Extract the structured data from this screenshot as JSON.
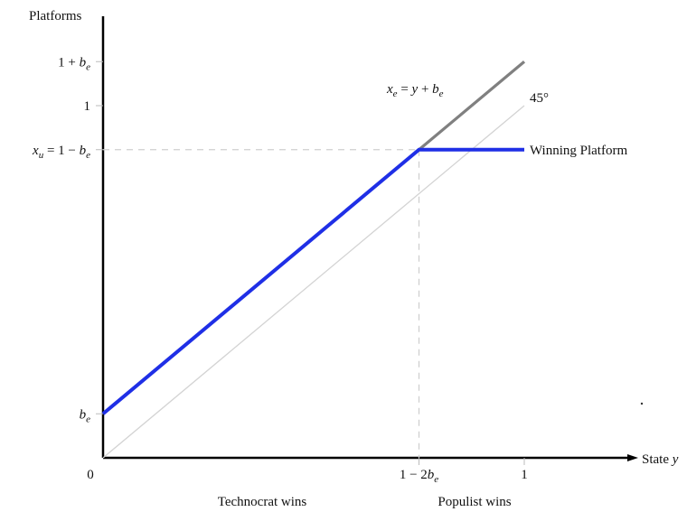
{
  "chart_data": {
    "type": "line",
    "title": "",
    "xlabel": "State y",
    "ylabel": "Platforms",
    "params": {
      "b_e": 0.125
    },
    "xlim": [
      0,
      1.1
    ],
    "ylim": [
      0,
      1.15
    ],
    "x_ticks": [
      {
        "value": 0,
        "label": "0"
      },
      {
        "value": 0.75,
        "label": "1 − 2b",
        "sub": "e"
      },
      {
        "value": 1,
        "label": "1"
      }
    ],
    "y_ticks": [
      {
        "value": 0.125,
        "label": "b",
        "sub": "e"
      },
      {
        "value": 0.875,
        "label": "x",
        "sub": "u",
        "rest": " = 1 − b",
        "sub2": "e"
      },
      {
        "value": 1,
        "label": "1"
      },
      {
        "value": 1.125,
        "label": "1 + b",
        "sub": "e"
      }
    ],
    "series": [
      {
        "name": "45°",
        "color": "#d3d3d3",
        "points": [
          [
            0,
            0
          ],
          [
            1,
            1
          ]
        ]
      },
      {
        "name": "x_e = y + b_e",
        "color": "#808080",
        "points": [
          [
            0.75,
            0.875
          ],
          [
            1,
            1.125
          ]
        ]
      },
      {
        "name": "Winning Platform",
        "color": "#1f2fe6",
        "points": [
          [
            0,
            0.125
          ],
          [
            0.75,
            0.875
          ],
          [
            1,
            0.875
          ]
        ]
      }
    ],
    "annotations": {
      "diag_label": "45°",
      "gray_label": {
        "a": "x",
        "sub": "e",
        "b": " = y + b",
        "sub2": "e"
      },
      "winning_label": "Winning Platform",
      "region_left": "Technocrat wins",
      "region_right": "Populist wins"
    }
  }
}
